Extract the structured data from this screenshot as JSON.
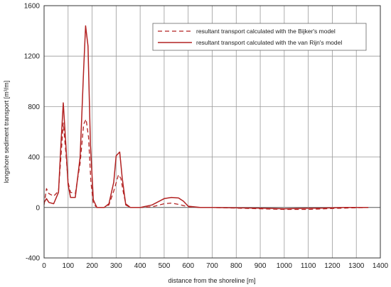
{
  "chart_data": {
    "type": "line",
    "title": "",
    "xlabel": "distance from the shoreline [m]",
    "ylabel": "longshore sediment transport [m³/m]",
    "xlim": [
      0,
      1400
    ],
    "ylim": [
      -400,
      1600
    ],
    "xticks": [
      0,
      100,
      200,
      300,
      400,
      500,
      600,
      700,
      800,
      900,
      1000,
      1100,
      1200,
      1300,
      1400
    ],
    "yticks": [
      -400,
      0,
      400,
      800,
      1200,
      1600
    ],
    "grid": true,
    "legend_position": "top-right",
    "series": [
      {
        "name": "resultant transport calculated with the Bijker's model",
        "style": "dashed",
        "color": "#b22222",
        "points": [
          [
            0,
            20
          ],
          [
            10,
            150
          ],
          [
            20,
            110
          ],
          [
            40,
            90
          ],
          [
            60,
            130
          ],
          [
            70,
            400
          ],
          [
            80,
            670
          ],
          [
            90,
            450
          ],
          [
            100,
            200
          ],
          [
            110,
            120
          ],
          [
            130,
            110
          ],
          [
            150,
            350
          ],
          [
            165,
            660
          ],
          [
            175,
            700
          ],
          [
            185,
            560
          ],
          [
            195,
            200
          ],
          [
            205,
            30
          ],
          [
            220,
            0
          ],
          [
            250,
            0
          ],
          [
            270,
            20
          ],
          [
            290,
            130
          ],
          [
            310,
            260
          ],
          [
            320,
            230
          ],
          [
            330,
            120
          ],
          [
            340,
            30
          ],
          [
            360,
            0
          ],
          [
            400,
            0
          ],
          [
            450,
            5
          ],
          [
            500,
            30
          ],
          [
            530,
            35
          ],
          [
            560,
            25
          ],
          [
            600,
            5
          ],
          [
            650,
            0
          ],
          [
            700,
            0
          ],
          [
            800,
            -5
          ],
          [
            900,
            -10
          ],
          [
            1000,
            -15
          ],
          [
            1050,
            -15
          ],
          [
            1100,
            -15
          ],
          [
            1150,
            -12
          ],
          [
            1200,
            -8
          ],
          [
            1250,
            -5
          ],
          [
            1300,
            -2
          ],
          [
            1350,
            0
          ]
        ]
      },
      {
        "name": "resultant transport calculated with the van Rijn's model",
        "style": "solid",
        "color": "#b22222",
        "points": [
          [
            0,
            40
          ],
          [
            10,
            70
          ],
          [
            20,
            40
          ],
          [
            40,
            30
          ],
          [
            60,
            120
          ],
          [
            70,
            500
          ],
          [
            80,
            830
          ],
          [
            90,
            520
          ],
          [
            100,
            180
          ],
          [
            110,
            80
          ],
          [
            130,
            80
          ],
          [
            150,
            400
          ],
          [
            165,
            1100
          ],
          [
            173,
            1440
          ],
          [
            183,
            1280
          ],
          [
            193,
            500
          ],
          [
            205,
            60
          ],
          [
            220,
            0
          ],
          [
            250,
            0
          ],
          [
            270,
            30
          ],
          [
            290,
            200
          ],
          [
            300,
            410
          ],
          [
            315,
            440
          ],
          [
            325,
            240
          ],
          [
            340,
            20
          ],
          [
            360,
            0
          ],
          [
            400,
            0
          ],
          [
            450,
            20
          ],
          [
            500,
            70
          ],
          [
            530,
            80
          ],
          [
            560,
            75
          ],
          [
            580,
            50
          ],
          [
            600,
            10
          ],
          [
            650,
            0
          ],
          [
            700,
            0
          ],
          [
            800,
            -3
          ],
          [
            900,
            -5
          ],
          [
            1000,
            -10
          ],
          [
            1050,
            -8
          ],
          [
            1100,
            -6
          ],
          [
            1150,
            -5
          ],
          [
            1200,
            -3
          ],
          [
            1250,
            0
          ],
          [
            1300,
            0
          ],
          [
            1350,
            0
          ]
        ]
      }
    ]
  }
}
